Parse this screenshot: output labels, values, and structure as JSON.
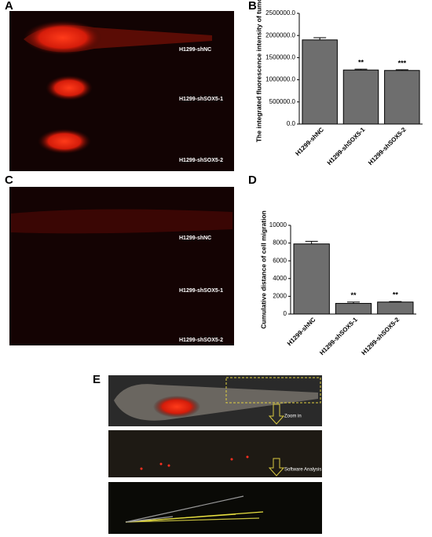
{
  "panels": {
    "a": {
      "label": "A",
      "image_labels": [
        "H1299-shNC",
        "H1299-shSOX5-1",
        "H1299-shSOX5-2"
      ]
    },
    "b": {
      "label": "B"
    },
    "c": {
      "label": "C",
      "image_labels": [
        "H1299-shNC",
        "H1299-shSOX5-1",
        "H1299-shSOX5-2"
      ]
    },
    "d": {
      "label": "D"
    },
    "e": {
      "label": "E",
      "annotations": [
        "Zoom in",
        "Software Analysis"
      ]
    }
  },
  "chart_data": [
    {
      "type": "bar",
      "y_label": "The integrated fluorescence intensity of tumor",
      "categories": [
        "H1299-shNC",
        "H1299-shSOX5-1",
        "H1299-shSOX5-2"
      ],
      "values": [
        1900000,
        1220000,
        1210000
      ],
      "errors": [
        50000,
        20000,
        15000
      ],
      "significance": [
        null,
        "**",
        "***"
      ],
      "color": "#6e6e6e",
      "ylim": [
        0,
        2500000
      ],
      "yticks": [
        {
          "value": 0,
          "label": "0.0"
        },
        {
          "value": 500000,
          "label": "500000.0"
        },
        {
          "value": 1000000,
          "label": "1000000.0"
        },
        {
          "value": 1500000,
          "label": "1500000.0"
        },
        {
          "value": 2000000,
          "label": "2000000.0"
        },
        {
          "value": 2500000,
          "label": "2500000.0"
        }
      ]
    },
    {
      "type": "bar",
      "y_label": "Cumulative distance of cell migration",
      "categories": [
        "H1299-shNC",
        "H1299-shSOX5-1",
        "H1299-shSOX5-2"
      ],
      "values": [
        7900,
        1200,
        1350
      ],
      "errors": [
        300,
        150,
        60
      ],
      "significance": [
        null,
        "**",
        "**"
      ],
      "color": "#6e6e6e",
      "ylim": [
        0,
        10000
      ],
      "yticks": [
        0,
        2000,
        4000,
        6000,
        8000,
        10000
      ]
    }
  ]
}
